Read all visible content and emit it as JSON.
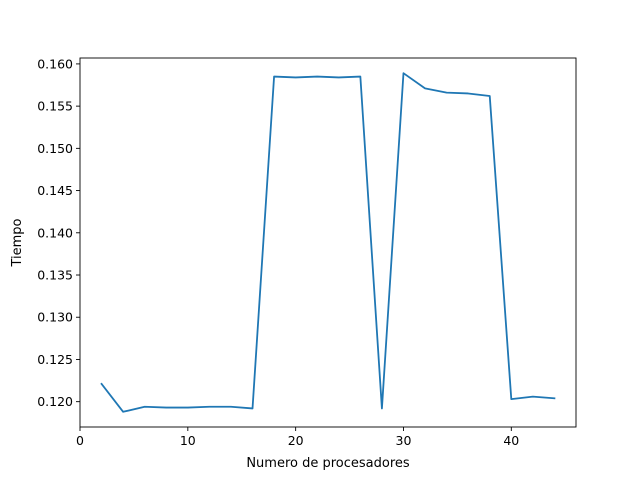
{
  "chart_data": {
    "type": "line",
    "title": "",
    "xlabel": "Numero de procesadores",
    "ylabel": "Tiempo",
    "xlim": [
      0,
      46
    ],
    "ylim": [
      0.117,
      0.1607
    ],
    "xticks": [
      0,
      10,
      20,
      30,
      40
    ],
    "xtick_labels": [
      "0",
      "10",
      "20",
      "30",
      "40"
    ],
    "yticks": [
      0.12,
      0.125,
      0.13,
      0.135,
      0.14,
      0.145,
      0.15,
      0.155,
      0.16
    ],
    "ytick_labels": [
      "0.120",
      "0.125",
      "0.130",
      "0.135",
      "0.140",
      "0.145",
      "0.150",
      "0.155",
      "0.160"
    ],
    "grid": false,
    "series": [
      {
        "color": "#1f77b4",
        "x": [
          2,
          4,
          6,
          8,
          10,
          12,
          14,
          16,
          18,
          20,
          22,
          24,
          26,
          28,
          30,
          32,
          34,
          36,
          38,
          40,
          42,
          44
        ],
        "y": [
          0.1221,
          0.1188,
          0.1194,
          0.1193,
          0.1193,
          0.1194,
          0.1194,
          0.1192,
          0.1585,
          0.1584,
          0.1585,
          0.1584,
          0.1585,
          0.1192,
          0.1589,
          0.1571,
          0.1566,
          0.1565,
          0.1562,
          0.1203,
          0.1206,
          0.1204
        ]
      }
    ]
  }
}
